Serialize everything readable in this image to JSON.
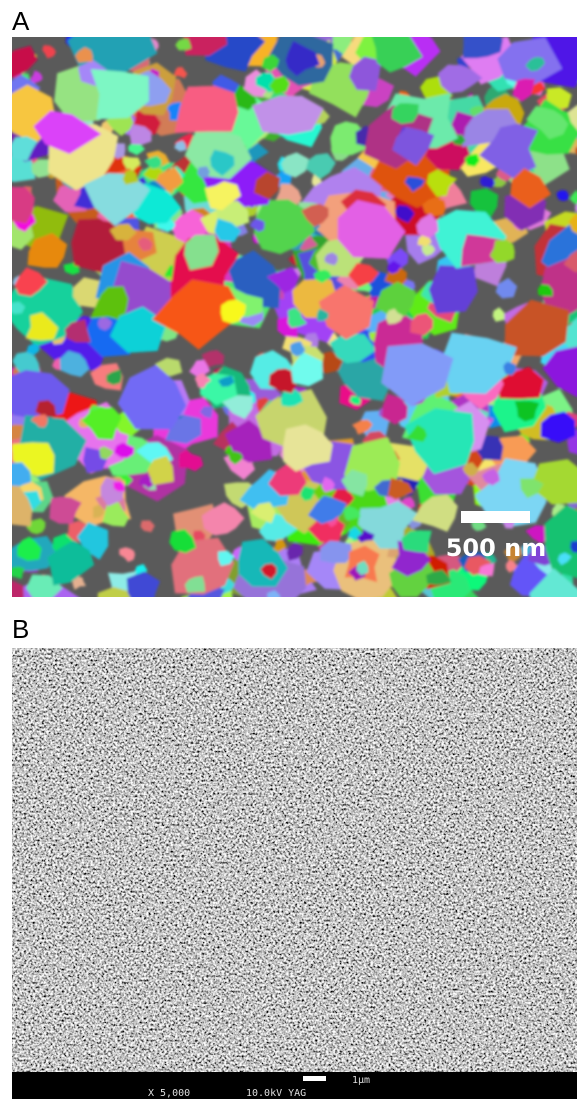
{
  "panels": [
    {
      "label": "A",
      "scale_bar": "500 nm"
    },
    {
      "label": "B",
      "magnification": "X 5,000",
      "voltage": "10.0kV YAG",
      "scale_bar": "1μm"
    }
  ]
}
